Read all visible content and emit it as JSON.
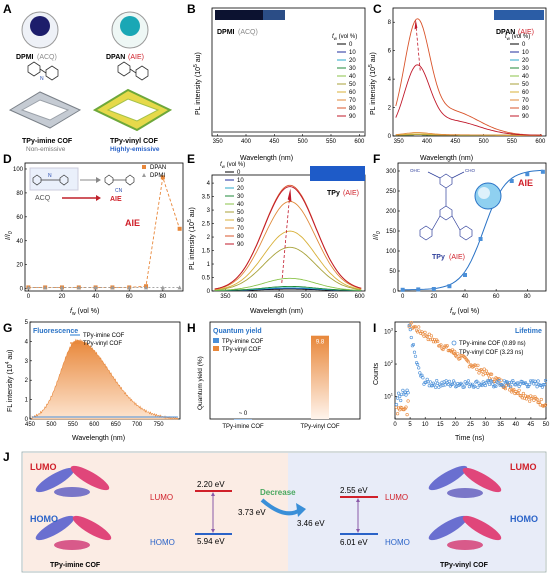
{
  "panelA": {
    "letter": "A",
    "mol1": "DPMI",
    "mol1_tag": "(ACQ)",
    "mol2": "DPAN",
    "mol2_tag": "(AIE)",
    "cof1_name": "TPy-imine COF",
    "cof1_desc": "Non-emissive",
    "cof2_name": "TPy-vinyl COF",
    "cof2_desc": "Highly-emissive"
  },
  "legend_fw": {
    "title": "f",
    "title_sub": "w",
    "title_unit": "(vol %)",
    "values": [
      "0",
      "10",
      "20",
      "30",
      "40",
      "50",
      "60",
      "70",
      "80",
      "90"
    ]
  },
  "series_colors": [
    "#000000",
    "#1f2d9e",
    "#2aa7c9",
    "#1f8a3a",
    "#8bc34a",
    "#a8a23a",
    "#d8b13a",
    "#e08a3a",
    "#d9542b",
    "#c0182a"
  ],
  "chart_data": [
    {
      "panel": "B",
      "type": "line",
      "inset_label": "DPMI",
      "inset_tag": "(ACQ)",
      "xlabel": "Wavelength (nm)",
      "ylabel": "PL intensity (10",
      "ylabel_sup": "5",
      "ylabel_unit": " au)",
      "xlim": [
        340,
        610
      ],
      "ylim": [
        0,
        2
      ],
      "xticks": [
        350,
        400,
        450,
        500,
        550,
        600
      ],
      "yticks": [],
      "series": [
        {
          "name": "0",
          "peak": 0
        },
        {
          "name": "90",
          "peak": 0
        }
      ]
    },
    {
      "panel": "C",
      "type": "line",
      "inset_label": "DPAN",
      "inset_tag": "(AIE)",
      "xlabel": "Wavelength (nm)",
      "ylabel": "PL intensity (10",
      "ylabel_sup": "5",
      "ylabel_unit": " au)",
      "xlim": [
        340,
        610
      ],
      "ylim": [
        0,
        9
      ],
      "xticks": [
        350,
        400,
        450,
        500,
        550,
        600
      ],
      "yticks": [
        0,
        2,
        4,
        6,
        8
      ],
      "series": [
        {
          "name": "0",
          "peak": 0.05
        },
        {
          "name": "10",
          "peak": 0.05
        },
        {
          "name": "20",
          "peak": 0.05
        },
        {
          "name": "30",
          "peak": 0.05
        },
        {
          "name": "40",
          "peak": 0.05
        },
        {
          "name": "50",
          "peak": 0.05
        },
        {
          "name": "60",
          "peak": 0.1
        },
        {
          "name": "70",
          "peak": 0.2
        },
        {
          "name": "80",
          "peak": 8.6
        },
        {
          "name": "90",
          "peak": 5.2
        }
      ],
      "peak_x": 382
    },
    {
      "panel": "D",
      "type": "line",
      "xlabel": "f",
      "xlabel_sub": "w",
      "xlabel_unit": " (vol %)",
      "ylabel": "I/I",
      "ylabel_sub": "0",
      "xlim": [
        -2,
        92
      ],
      "ylim": [
        -2,
        105
      ],
      "xticks": [
        0,
        20,
        40,
        60,
        80
      ],
      "yticks": [
        0,
        20,
        40,
        60,
        80,
        100
      ],
      "x": [
        0,
        10,
        20,
        30,
        40,
        50,
        60,
        70,
        80,
        90
      ],
      "series": [
        {
          "name": "DPAN",
          "values": [
            1,
            1,
            1,
            1,
            1,
            1,
            1,
            2,
            93,
            50
          ]
        },
        {
          "name": "DPMI",
          "values": [
            1,
            1,
            1,
            1,
            1,
            1,
            1,
            1,
            1,
            1
          ]
        }
      ],
      "annot_acq": "ACQ",
      "annot_aie": "AIE",
      "annot_aie2": "AIE",
      "cn": "CN"
    },
    {
      "panel": "E",
      "type": "line",
      "inset_label": "TPy",
      "inset_tag": "(AIE)",
      "xlabel": "Wavelength (nm)",
      "ylabel": "PL intensity (10",
      "ylabel_sup": "5",
      "ylabel_unit": " au)",
      "xlim": [
        325,
        610
      ],
      "ylim": [
        0,
        4.3
      ],
      "xticks": [
        350,
        400,
        450,
        500,
        550,
        600
      ],
      "yticks": [
        0,
        0.5,
        1.0,
        1.5,
        2.0,
        2.5,
        3.0,
        3.5,
        4.0
      ],
      "series": [
        {
          "name": "0",
          "peak": 0.05
        },
        {
          "name": "10",
          "peak": 0.08
        },
        {
          "name": "20",
          "peak": 0.1
        },
        {
          "name": "30",
          "peak": 0.15
        },
        {
          "name": "40",
          "peak": 0.45
        },
        {
          "name": "50",
          "peak": 1.6
        },
        {
          "name": "60",
          "peak": 2.2
        },
        {
          "name": "70",
          "peak": 3.3
        },
        {
          "name": "80",
          "peak": 3.9
        },
        {
          "name": "90",
          "peak": 3.85
        }
      ],
      "peak_x": 470
    },
    {
      "panel": "F",
      "type": "line",
      "xlabel": "f",
      "xlabel_sub": "w",
      "xlabel_unit": " (vol %)",
      "ylabel": "I/I",
      "ylabel_sub": "0",
      "xlim": [
        -3,
        92
      ],
      "ylim": [
        0,
        320
      ],
      "xticks": [
        0,
        20,
        40,
        60,
        80
      ],
      "yticks": [
        0,
        50,
        100,
        150,
        200,
        250,
        300
      ],
      "x": [
        0,
        10,
        20,
        30,
        40,
        50,
        60,
        70,
        80,
        90
      ],
      "series": [
        {
          "name": "TPy",
          "values": [
            3,
            4,
            5,
            12,
            40,
            130,
            230,
            275,
            292,
            298
          ]
        }
      ],
      "annot": "AIE",
      "mol_label": "TPy",
      "mol_tag": "(AIE)",
      "cho": "OHC",
      "cho2": "CHO"
    },
    {
      "panel": "G",
      "type": "area",
      "title": "Fluorescence",
      "xlabel": "Wavelength (nm)",
      "ylabel": "FL intensity (10",
      "ylabel_sup": "4",
      "ylabel_unit": " au)",
      "xlim": [
        450,
        800
      ],
      "ylim": [
        0,
        5
      ],
      "xticks": [
        450,
        500,
        550,
        600,
        650,
        700,
        750
      ],
      "yticks": [
        0,
        1,
        2,
        3,
        4,
        5
      ],
      "series": [
        {
          "name": "TPy-imine COF",
          "peak": 0.1
        },
        {
          "name": "TPy-vinyl COF",
          "peak": 4.05,
          "peak_x": 560
        }
      ]
    },
    {
      "panel": "H",
      "type": "bar",
      "title": "Quantum yield",
      "categories": [
        "TPy-imine COF",
        "TPy-vinyl COF"
      ],
      "values": [
        0,
        9.8
      ],
      "value_labels": [
        "~ 0",
        "9.8"
      ],
      "ylabel": "Quantum yield (%)",
      "legend": [
        "TPy-imine COF",
        "TPy-vinyl COF"
      ]
    },
    {
      "panel": "I",
      "type": "scatter",
      "title": "Lifetime",
      "xlabel": "Time (ns)",
      "ylabel": "Counts",
      "xlim": [
        0,
        50
      ],
      "xticks": [
        0,
        5,
        10,
        15,
        20,
        25,
        30,
        35,
        40,
        45,
        50
      ],
      "yticks_log": [
        1,
        2,
        3
      ],
      "series": [
        {
          "name": "TPy-imine COF",
          "lifetime": "(0.89 ns)"
        },
        {
          "name": "TPy-vinyl COF",
          "lifetime": "(3.23 ns)"
        }
      ]
    }
  ],
  "panelJ": {
    "letter": "J",
    "left": {
      "lumo": "LUMO",
      "homo": "HOMO",
      "lumo_e": "2.20 eV",
      "homo_e": "5.94 eV",
      "gap": "3.73 eV",
      "name": "TPy-imine COF"
    },
    "arrow": "Decrease",
    "right": {
      "lumo": "LUMO",
      "homo": "HOMO",
      "lumo_e": "2.55 eV",
      "homo_e": "6.01 eV",
      "gap": "3.46 eV",
      "name": "TPy-vinyl COF"
    }
  },
  "colors": {
    "orange": "#e8873a",
    "blue": "#4a8fd8",
    "red": "#d0202a",
    "teal": "#1f8ea8"
  }
}
